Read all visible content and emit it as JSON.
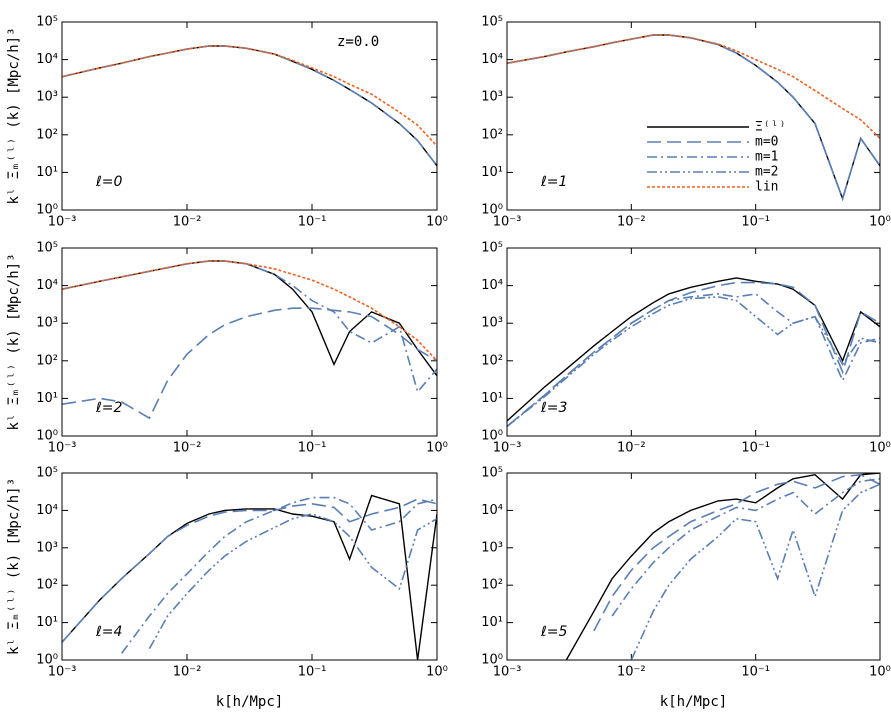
{
  "ylabel": "kˡ Ξₘ⁽ˡ⁾ (k) [Mpc/h]³",
  "xlabel": "k[h/Mpc]",
  "annotation": "z=0.0",
  "chart_data": [
    {
      "type": "line",
      "annotation": "ℓ=0",
      "log_x": true,
      "log_y": true,
      "xlim": [
        0.001,
        1
      ],
      "ylim": [
        1,
        100000
      ],
      "xticks": [
        {
          "value": 0.001,
          "label": "10⁻³"
        },
        {
          "value": 0.01,
          "label": "10⁻²"
        },
        {
          "value": 0.1,
          "label": "10⁻¹"
        },
        {
          "value": 1,
          "label": "10⁰"
        }
      ],
      "yticks": [
        {
          "value": 1,
          "label": "10⁰"
        },
        {
          "value": 10,
          "label": "10¹"
        },
        {
          "value": 100,
          "label": "10²"
        },
        {
          "value": 1000,
          "label": "10³"
        },
        {
          "value": 10000,
          "label": "10⁴"
        },
        {
          "value": 100000,
          "label": "10⁵"
        }
      ],
      "x": [
        0.001,
        0.002,
        0.003,
        0.005,
        0.007,
        0.01,
        0.015,
        0.02,
        0.03,
        0.05,
        0.07,
        0.1,
        0.15,
        0.2,
        0.3,
        0.5,
        0.7,
        1.0
      ],
      "series": [
        {
          "name": "Ξ⁽ˡ⁾",
          "color": "#000000",
          "linestyle": "solid",
          "values": [
            3500,
            6000,
            8000,
            12000,
            15000,
            19000,
            23000,
            23000,
            20000,
            14000,
            9000,
            5500,
            2800,
            1600,
            700,
            200,
            70,
            15
          ]
        },
        {
          "name": "m=0",
          "color": "#5b7fb5",
          "linestyle": "dashed",
          "values": [
            3500,
            6000,
            8000,
            12000,
            15000,
            19000,
            23000,
            23000,
            20000,
            14000,
            9000,
            5500,
            2800,
            1600,
            700,
            200,
            70,
            15
          ]
        },
        {
          "name": "lin",
          "color": "#f06020",
          "linestyle": "dotted",
          "values": [
            3500,
            6000,
            8000,
            12000,
            15000,
            19000,
            23000,
            23000,
            20000,
            14000,
            9500,
            6000,
            3500,
            2200,
            1200,
            400,
            180,
            50
          ]
        }
      ]
    },
    {
      "type": "line",
      "annotation": "ℓ=1",
      "legend": "center right",
      "log_x": true,
      "log_y": true,
      "xlim": [
        0.001,
        1
      ],
      "ylim": [
        1,
        100000
      ],
      "xticks": [
        {
          "value": 0.001,
          "label": "10⁻³"
        },
        {
          "value": 0.01,
          "label": "10⁻²"
        },
        {
          "value": 0.1,
          "label": "10⁻¹"
        },
        {
          "value": 1,
          "label": "10⁰"
        }
      ],
      "yticks": [
        {
          "value": 1,
          "label": "10⁰"
        },
        {
          "value": 10,
          "label": "10¹"
        },
        {
          "value": 100,
          "label": "10²"
        },
        {
          "value": 1000,
          "label": "10³"
        },
        {
          "value": 10000,
          "label": "10⁴"
        },
        {
          "value": 100000,
          "label": "10⁵"
        }
      ],
      "x": [
        0.001,
        0.002,
        0.003,
        0.005,
        0.007,
        0.01,
        0.015,
        0.02,
        0.03,
        0.05,
        0.07,
        0.1,
        0.15,
        0.2,
        0.3,
        0.5,
        0.7,
        1.0
      ],
      "series": [
        {
          "name": "Ξ⁽ˡ⁾",
          "color": "#000000",
          "linestyle": "solid",
          "values": [
            8000,
            12000,
            16000,
            22000,
            28000,
            35000,
            45000,
            45000,
            38000,
            25000,
            15000,
            7000,
            2500,
            1000,
            200,
            2,
            80,
            15
          ]
        },
        {
          "name": "m=0",
          "color": "#5b7fb5",
          "linestyle": "dashed",
          "values": [
            8000,
            12000,
            16000,
            22000,
            28000,
            35000,
            45000,
            45000,
            38000,
            25000,
            15000,
            7000,
            2500,
            1000,
            200,
            2,
            80,
            15
          ]
        },
        {
          "name": "m=1",
          "color": "#5b7fb5",
          "linestyle": "dashdot",
          "values": [
            8000,
            12000,
            16000,
            22000,
            28000,
            35000,
            45000,
            45000,
            38000,
            25000,
            15000,
            7000,
            2500,
            1000,
            200,
            2,
            80,
            15
          ]
        },
        {
          "name": "m=2",
          "color": "#5b7fb5",
          "linestyle": "dashdotdot",
          "values": [
            null,
            null,
            null,
            null,
            null,
            null,
            null,
            null,
            null,
            null,
            null,
            null,
            null,
            null,
            null,
            null,
            null,
            null
          ]
        },
        {
          "name": "lin",
          "color": "#f06020",
          "linestyle": "dotted",
          "values": [
            8000,
            12000,
            16000,
            22000,
            28000,
            35000,
            45000,
            45000,
            38000,
            26000,
            17000,
            10000,
            5500,
            3500,
            1500,
            500,
            250,
            80
          ]
        }
      ]
    },
    {
      "type": "line",
      "annotation": "ℓ=2",
      "log_x": true,
      "log_y": true,
      "xlim": [
        0.001,
        1
      ],
      "ylim": [
        1,
        100000
      ],
      "xticks": [
        {
          "value": 0.001,
          "label": "10⁻³"
        },
        {
          "value": 0.01,
          "label": "10⁻²"
        },
        {
          "value": 0.1,
          "label": "10⁻¹"
        },
        {
          "value": 1,
          "label": "10⁰"
        }
      ],
      "yticks": [
        {
          "value": 1,
          "label": "10⁰"
        },
        {
          "value": 10,
          "label": "10¹"
        },
        {
          "value": 100,
          "label": "10²"
        },
        {
          "value": 1000,
          "label": "10³"
        },
        {
          "value": 10000,
          "label": "10⁴"
        },
        {
          "value": 100000,
          "label": "10⁵"
        }
      ],
      "x": [
        0.001,
        0.002,
        0.003,
        0.005,
        0.007,
        0.01,
        0.015,
        0.02,
        0.03,
        0.05,
        0.07,
        0.1,
        0.15,
        0.2,
        0.3,
        0.5,
        0.7,
        1.0
      ],
      "series": [
        {
          "name": "Ξ⁽ˡ⁾",
          "color": "#000000",
          "linestyle": "solid",
          "values": [
            8000,
            13000,
            17000,
            24000,
            30000,
            38000,
            45000,
            45000,
            38000,
            20000,
            8000,
            2000,
            80,
            600,
            2000,
            1000,
            200,
            40
          ]
        },
        {
          "name": "m=0",
          "color": "#5b7fb5",
          "linestyle": "dashed",
          "values": [
            7,
            10,
            8,
            3,
            30,
            150,
            500,
            900,
            1500,
            2200,
            2500,
            2500,
            2200,
            2000,
            1500,
            500,
            200,
            100
          ]
        },
        {
          "name": "m=1",
          "color": "#5b7fb5",
          "linestyle": "dashdot",
          "values": [
            8000,
            13000,
            17000,
            24000,
            30000,
            38000,
            45000,
            45000,
            38000,
            20000,
            10000,
            4000,
            2000,
            600,
            300,
            800,
            15,
            60
          ]
        },
        {
          "name": "lin",
          "color": "#f06020",
          "linestyle": "dotted",
          "values": [
            8000,
            13000,
            17000,
            24000,
            30000,
            38000,
            45000,
            45000,
            38000,
            28000,
            20000,
            14000,
            8000,
            5000,
            2500,
            800,
            350,
            100
          ]
        }
      ]
    },
    {
      "type": "line",
      "annotation": "ℓ=3",
      "log_x": true,
      "log_y": true,
      "xlim": [
        0.001,
        1
      ],
      "ylim": [
        1,
        100000
      ],
      "xticks": [
        {
          "value": 0.001,
          "label": "10⁻³"
        },
        {
          "value": 0.01,
          "label": "10⁻²"
        },
        {
          "value": 0.1,
          "label": "10⁻¹"
        },
        {
          "value": 1,
          "label": "10⁰"
        }
      ],
      "yticks": [
        {
          "value": 1,
          "label": "10⁰"
        },
        {
          "value": 10,
          "label": "10¹"
        },
        {
          "value": 100,
          "label": "10²"
        },
        {
          "value": 1000,
          "label": "10³"
        },
        {
          "value": 10000,
          "label": "10⁴"
        },
        {
          "value": 100000,
          "label": "10⁵"
        }
      ],
      "x": [
        0.001,
        0.002,
        0.003,
        0.005,
        0.007,
        0.01,
        0.015,
        0.02,
        0.03,
        0.05,
        0.07,
        0.1,
        0.15,
        0.2,
        0.3,
        0.5,
        0.7,
        1.0
      ],
      "series": [
        {
          "name": "Ξ⁽ˡ⁾",
          "color": "#000000",
          "linestyle": "solid",
          "values": [
            2.5,
            20,
            60,
            250,
            600,
            1500,
            3500,
            6000,
            9000,
            13000,
            16000,
            13000,
            11000,
            8000,
            3000,
            100,
            2000,
            800
          ]
        },
        {
          "name": "m=0",
          "color": "#5b7fb5",
          "linestyle": "dashed",
          "values": [
            1.8,
            12,
            40,
            170,
            400,
            1000,
            2300,
            4000,
            6500,
            10000,
            12000,
            12000,
            11000,
            9000,
            3000,
            50,
            2000,
            1000
          ]
        },
        {
          "name": "m=1",
          "color": "#5b7fb5",
          "linestyle": "dashdot",
          "values": [
            1.8,
            12,
            40,
            170,
            400,
            1000,
            2300,
            4000,
            5000,
            6000,
            5000,
            6000,
            2000,
            1000,
            1500,
            30,
            300,
            400
          ]
        },
        {
          "name": "m=2",
          "color": "#5b7fb5",
          "linestyle": "dashdotdot",
          "values": [
            1.8,
            11,
            35,
            150,
            350,
            800,
            1800,
            3000,
            4500,
            5000,
            4000,
            1500,
            500,
            1000,
            1500,
            80,
            400,
            300
          ]
        }
      ]
    },
    {
      "type": "line",
      "annotation": "ℓ=4",
      "log_x": true,
      "log_y": true,
      "xlim": [
        0.001,
        1
      ],
      "ylim": [
        1,
        100000
      ],
      "xticks": [
        {
          "value": 0.001,
          "label": "10⁻³"
        },
        {
          "value": 0.01,
          "label": "10⁻²"
        },
        {
          "value": 0.1,
          "label": "10⁻¹"
        },
        {
          "value": 1,
          "label": "10⁰"
        }
      ],
      "yticks": [
        {
          "value": 1,
          "label": "10⁰"
        },
        {
          "value": 10,
          "label": "10¹"
        },
        {
          "value": 100,
          "label": "10²"
        },
        {
          "value": 1000,
          "label": "10³"
        },
        {
          "value": 10000,
          "label": "10⁴"
        },
        {
          "value": 100000,
          "label": "10⁵"
        }
      ],
      "x": [
        0.001,
        0.002,
        0.003,
        0.005,
        0.007,
        0.01,
        0.015,
        0.02,
        0.03,
        0.05,
        0.07,
        0.1,
        0.15,
        0.2,
        0.3,
        0.5,
        0.7,
        1.0
      ],
      "series": [
        {
          "name": "Ξ⁽ˡ⁾",
          "color": "#000000",
          "linestyle": "solid",
          "values": [
            3,
            40,
            150,
            700,
            2000,
            4500,
            8000,
            10000,
            11000,
            11000,
            8000,
            7000,
            5000,
            500,
            25000,
            15000,
            1,
            8000
          ]
        },
        {
          "name": "m=0",
          "color": "#5b7fb5",
          "linestyle": "dashed",
          "values": [
            3,
            40,
            150,
            700,
            2000,
            4000,
            7000,
            9000,
            10000,
            10000,
            13000,
            15000,
            12000,
            5000,
            8000,
            12000,
            20000,
            15000
          ]
        },
        {
          "name": "m=1",
          "color": "#5b7fb5",
          "linestyle": "dashdot",
          "values": [
            null,
            null,
            1.5,
            15,
            60,
            200,
            800,
            2000,
            5000,
            10000,
            16000,
            22000,
            22000,
            15000,
            3000,
            5000,
            15000,
            20000
          ]
        },
        {
          "name": "m=2",
          "color": "#5b7fb5",
          "linestyle": "dashdotdot",
          "values": [
            null,
            null,
            null,
            2,
            15,
            60,
            250,
            600,
            1500,
            3500,
            6000,
            8000,
            5000,
            2000,
            300,
            80,
            3000,
            6000
          ]
        }
      ]
    },
    {
      "type": "line",
      "annotation": "ℓ=5",
      "log_x": true,
      "log_y": true,
      "xlim": [
        0.001,
        1
      ],
      "ylim": [
        1,
        100000
      ],
      "xticks": [
        {
          "value": 0.001,
          "label": "10⁻³"
        },
        {
          "value": 0.01,
          "label": "10⁻²"
        },
        {
          "value": 0.1,
          "label": "10⁻¹"
        },
        {
          "value": 1,
          "label": "10⁰"
        }
      ],
      "yticks": [
        {
          "value": 1,
          "label": "10⁰"
        },
        {
          "value": 10,
          "label": "10¹"
        },
        {
          "value": 100,
          "label": "10²"
        },
        {
          "value": 1000,
          "label": "10³"
        },
        {
          "value": 10000,
          "label": "10⁴"
        },
        {
          "value": 100000,
          "label": "10⁵"
        }
      ],
      "x": [
        0.001,
        0.002,
        0.003,
        0.005,
        0.007,
        0.01,
        0.015,
        0.02,
        0.03,
        0.05,
        0.07,
        0.1,
        0.15,
        0.2,
        0.3,
        0.5,
        0.7,
        1.0
      ],
      "series": [
        {
          "name": "Ξ⁽ˡ⁾",
          "color": "#000000",
          "linestyle": "solid",
          "values": [
            null,
            null,
            1,
            20,
            150,
            600,
            2500,
            5000,
            10000,
            18000,
            20000,
            16000,
            40000,
            70000,
            90000,
            20000,
            90000,
            100000
          ]
        },
        {
          "name": "m=0",
          "color": "#5b7fb5",
          "linestyle": "dashed",
          "values": [
            null,
            null,
            null,
            6,
            50,
            250,
            1000,
            2000,
            5000,
            10000,
            15000,
            30000,
            50000,
            60000,
            40000,
            80000,
            90000,
            50000
          ]
        },
        {
          "name": "m=1",
          "color": "#5b7fb5",
          "linestyle": "dashdot",
          "values": [
            null,
            null,
            null,
            null,
            15,
            80,
            400,
            1000,
            3000,
            7000,
            12000,
            10000,
            20000,
            30000,
            8000,
            30000,
            60000,
            70000
          ]
        },
        {
          "name": "m=2",
          "color": "#5b7fb5",
          "linestyle": "dashdotdot",
          "values": [
            null,
            null,
            null,
            null,
            null,
            1,
            20,
            100,
            500,
            2000,
            6000,
            5000,
            150,
            3000,
            50,
            10000,
            30000,
            50000
          ]
        }
      ]
    }
  ]
}
